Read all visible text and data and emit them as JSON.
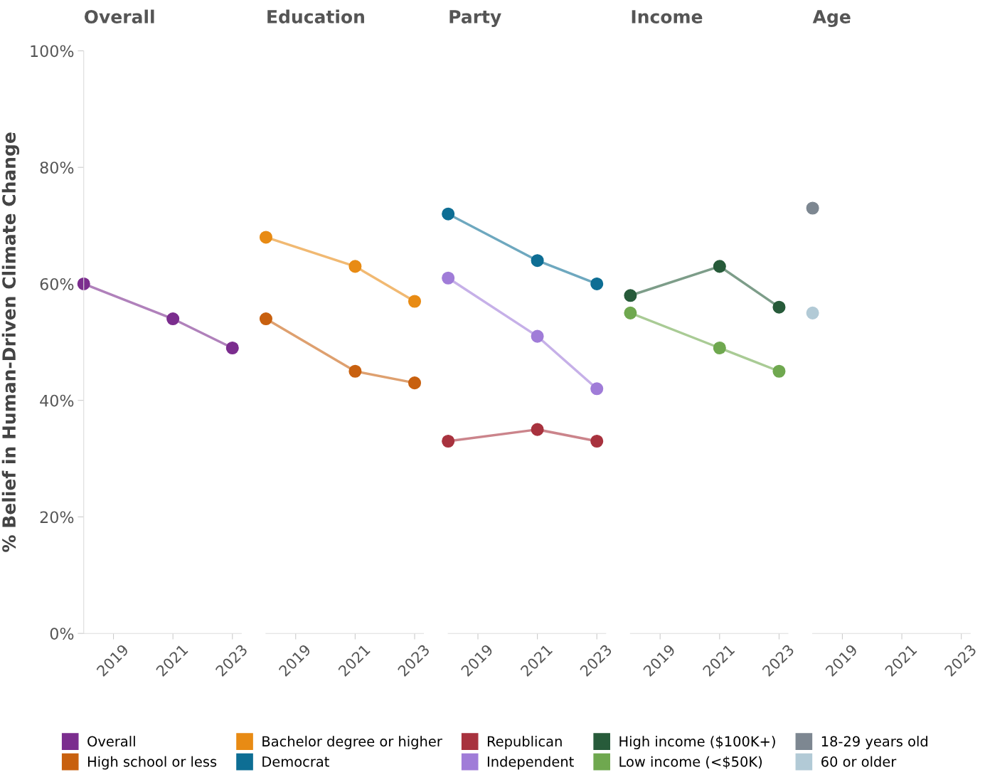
{
  "chart_data": [
    {
      "type": "line",
      "title": "Overall",
      "ylabel": "% Belief in Human-Driven Climate Change",
      "x": [
        2018,
        2021,
        2023
      ],
      "xlim": [
        2018,
        2023.3
      ],
      "xticks": [
        2019,
        2021,
        2023
      ],
      "ylim": [
        0,
        100
      ],
      "yticks": [
        {
          "value": 0,
          "label": "0%"
        },
        {
          "value": 20,
          "label": "20%"
        },
        {
          "value": 40,
          "label": "40%"
        },
        {
          "value": 60,
          "label": "60%"
        },
        {
          "value": 80,
          "label": "80%"
        },
        {
          "value": 100,
          "label": "100%"
        }
      ],
      "marker": "circle",
      "line_style": "solid",
      "grid": false,
      "legend": "bottom",
      "series": [
        {
          "name": "Overall",
          "color": "#7b2d8e",
          "values": [
            60,
            54,
            49
          ]
        }
      ]
    },
    {
      "type": "line",
      "title": "Education",
      "x": [
        2018,
        2021,
        2023
      ],
      "xlim": [
        2018,
        2023.3
      ],
      "xticks": [
        2019,
        2021,
        2023
      ],
      "ylim": [
        0,
        100
      ],
      "tick_labels": "x",
      "marker": "circle",
      "line_style": "solid",
      "grid": false,
      "legend": "bottom",
      "series": [
        {
          "name": "High school or less",
          "color": "#c8600f",
          "values": [
            54,
            45,
            43
          ]
        },
        {
          "name": "Bachelor degree or higher",
          "color": "#e88b14",
          "values": [
            68,
            63,
            57
          ]
        }
      ]
    },
    {
      "type": "line",
      "title": "Party",
      "x": [
        2018,
        2021,
        2023
      ],
      "xlim": [
        2018,
        2023.3
      ],
      "xticks": [
        2019,
        2021,
        2023
      ],
      "ylim": [
        0,
        100
      ],
      "tick_labels": "x",
      "marker": "circle",
      "line_style": "solid",
      "grid": false,
      "legend": "bottom",
      "series": [
        {
          "name": "Democrat",
          "color": "#0e6e94",
          "values": [
            72,
            64,
            60
          ]
        },
        {
          "name": "Republican",
          "color": "#a8323e",
          "values": [
            33,
            35,
            33
          ]
        },
        {
          "name": "Independent",
          "color": "#a07cd8",
          "values": [
            61,
            51,
            42
          ]
        }
      ]
    },
    {
      "type": "line",
      "title": "Income",
      "x": [
        2018,
        2021,
        2023
      ],
      "xlim": [
        2018,
        2023.3
      ],
      "xticks": [
        2019,
        2021,
        2023
      ],
      "ylim": [
        0,
        100
      ],
      "tick_labels": "x",
      "marker": "circle",
      "line_style": "solid",
      "grid": false,
      "legend": "bottom",
      "series": [
        {
          "name": "High income ($100K+)",
          "color": "#275b3a",
          "values": [
            58,
            63,
            56
          ]
        },
        {
          "name": "Low income (<$50K)",
          "color": "#6fa84f",
          "values": [
            55,
            49,
            45
          ]
        }
      ]
    },
    {
      "type": "line",
      "title": "Age",
      "x": [
        2018
      ],
      "xlim": [
        2018,
        2023.3
      ],
      "xticks": [
        2019,
        2021,
        2023
      ],
      "ylim": [
        0,
        100
      ],
      "tick_labels": "x",
      "marker": "circle",
      "line_style": "solid",
      "grid": false,
      "legend": "bottom",
      "series": [
        {
          "name": "18-29 years old",
          "color": "#7d8791",
          "values": [
            73
          ]
        },
        {
          "name": "60 or older",
          "color": "#b2cad6",
          "values": [
            55
          ]
        }
      ]
    }
  ]
}
